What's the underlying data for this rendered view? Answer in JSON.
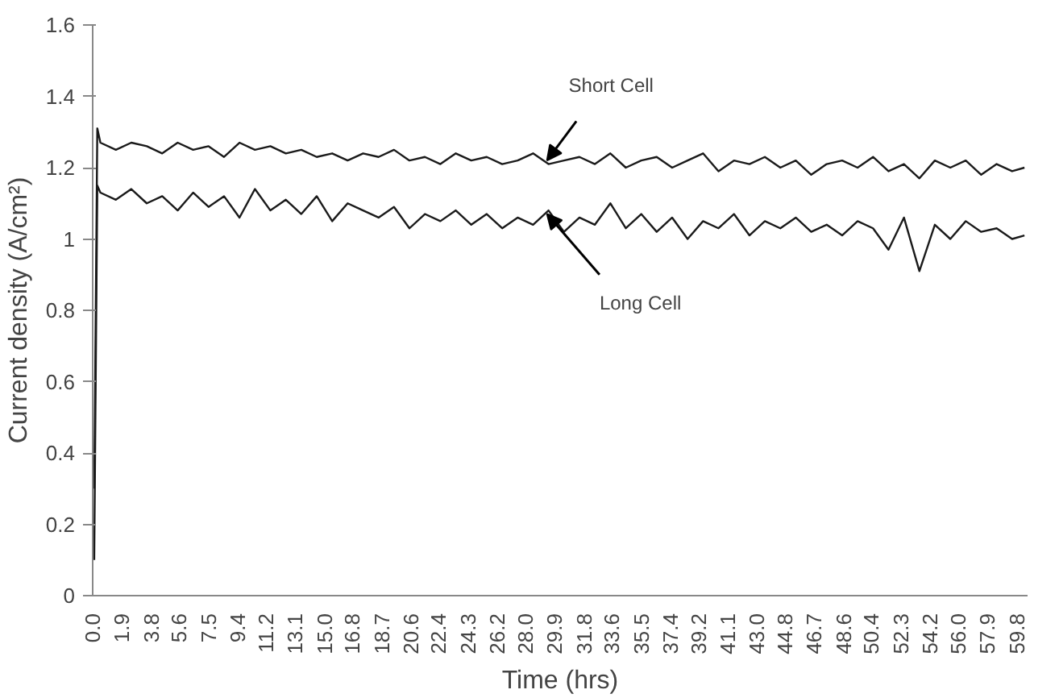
{
  "chart_data": {
    "type": "line",
    "xlabel": "Time (hrs)",
    "ylabel": "Current density (A/cm²)",
    "x": [
      0.1,
      0.3,
      0.5,
      1.5,
      2.5,
      3.5,
      4.5,
      5.5,
      6.5,
      7.5,
      8.5,
      9.5,
      10.5,
      11.5,
      12.5,
      13.5,
      14.5,
      15.5,
      16.5,
      17.5,
      18.5,
      19.5,
      20.5,
      21.5,
      22.5,
      23.5,
      24.5,
      25.5,
      26.5,
      27.5,
      28.5,
      29.5,
      30.5,
      31.5,
      32.5,
      33.5,
      34.5,
      35.5,
      36.5,
      37.5,
      38.5,
      39.5,
      40.5,
      41.5,
      42.5,
      43.5,
      44.5,
      45.5,
      46.5,
      47.5,
      48.5,
      49.5,
      50.5,
      51.5,
      52.5,
      53.5,
      54.5,
      55.5,
      56.5,
      57.5,
      58.5,
      59.5,
      60.3
    ],
    "series": [
      {
        "color": "#1a1a1a",
        "values": [
          0.3,
          1.31,
          1.27,
          1.25,
          1.27,
          1.26,
          1.24,
          1.27,
          1.25,
          1.26,
          1.23,
          1.27,
          1.25,
          1.26,
          1.24,
          1.25,
          1.23,
          1.24,
          1.22,
          1.24,
          1.23,
          1.25,
          1.22,
          1.23,
          1.21,
          1.24,
          1.22,
          1.23,
          1.21,
          1.22,
          1.24,
          1.21,
          1.22,
          1.23,
          1.21,
          1.24,
          1.2,
          1.22,
          1.23,
          1.2,
          1.22,
          1.24,
          1.19,
          1.22,
          1.21,
          1.23,
          1.2,
          1.22,
          1.18,
          1.21,
          1.22,
          1.2,
          1.23,
          1.19,
          1.21,
          1.17,
          1.22,
          1.2,
          1.22,
          1.18,
          1.21,
          1.19,
          1.2
        ]
      },
      {
        "color": "#1a1a1a",
        "values": [
          0.1,
          1.15,
          1.13,
          1.11,
          1.14,
          1.1,
          1.12,
          1.08,
          1.13,
          1.09,
          1.12,
          1.06,
          1.14,
          1.08,
          1.11,
          1.07,
          1.12,
          1.05,
          1.1,
          1.08,
          1.06,
          1.09,
          1.03,
          1.07,
          1.05,
          1.08,
          1.04,
          1.07,
          1.03,
          1.06,
          1.04,
          1.08,
          1.02,
          1.06,
          1.04,
          1.1,
          1.03,
          1.07,
          1.02,
          1.06,
          1.0,
          1.05,
          1.03,
          1.07,
          1.01,
          1.05,
          1.03,
          1.06,
          1.02,
          1.04,
          1.01,
          1.05,
          1.03,
          0.97,
          1.06,
          0.91,
          1.04,
          1.0,
          1.05,
          1.02,
          1.03,
          1.0,
          1.01
        ]
      }
    ],
    "xlim": [
      0,
      60.5
    ],
    "xticks": [
      {
        "value": 0,
        "label": "0.0"
      },
      1.9,
      3.8,
      5.6,
      7.5,
      9.4,
      11.2,
      13.1,
      {
        "value": 15,
        "label": "15.0"
      },
      16.8,
      18.7,
      20.6,
      22.4,
      24.3,
      26.2,
      {
        "value": 28,
        "label": "28.0"
      },
      29.9,
      31.8,
      33.6,
      35.5,
      37.4,
      39.2,
      41.1,
      {
        "value": 43,
        "label": "43.0"
      },
      44.8,
      46.7,
      48.6,
      50.4,
      52.3,
      54.2,
      {
        "value": 56,
        "label": "56.0"
      },
      57.9,
      59.8
    ],
    "ylim": [
      0,
      1.6
    ],
    "yticks": [
      0,
      0.2,
      0.4,
      0.6,
      0.8,
      1,
      1.2,
      1.4,
      1.6
    ],
    "annotations": [
      {
        "text": "Short Cell",
        "x": 29.4,
        "y": 1.22
      },
      {
        "text": "Long Cell",
        "x": 29.4,
        "y": 1.07
      }
    ],
    "grid": false,
    "marker": "none",
    "line_style": "solid"
  }
}
